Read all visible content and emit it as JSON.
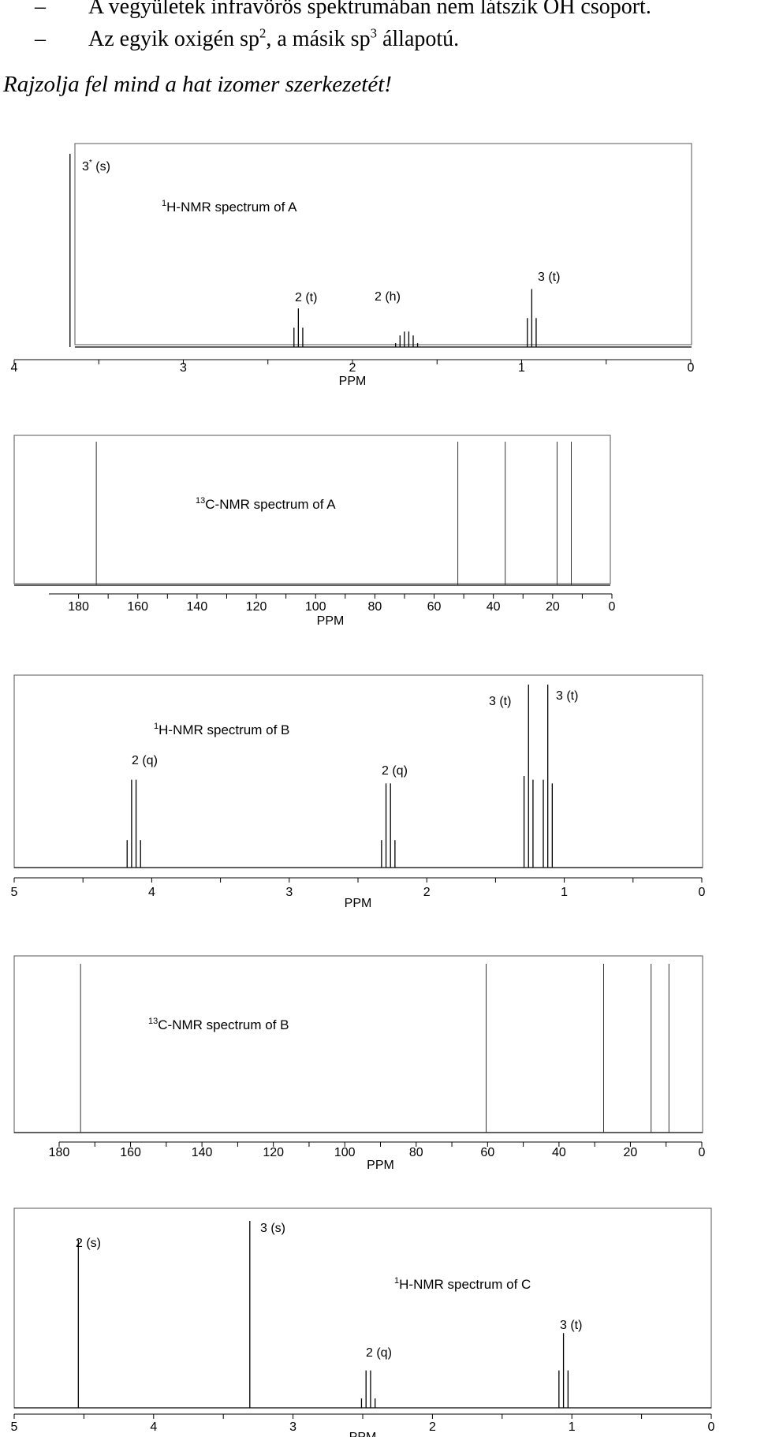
{
  "text_lines": [
    {
      "bullet": "–",
      "text": "A vegyületek infravörös spektrumában nem látszik OH csoport."
    },
    {
      "bullet": "–",
      "parts": [
        "Az egyik oxigén sp",
        "2",
        ", a másik sp",
        "3",
        " állapotú."
      ]
    }
  ],
  "instruction": "Rajzolja fel mind a hat izomer szerkezetét!",
  "axis_label": "PPM",
  "chart_data": [
    {
      "type": "line",
      "title_sup": "1",
      "title": "H-NMR spectrum of A",
      "xlim": [
        4,
        0
      ],
      "xticks": [
        "4",
        "3",
        "2",
        "1",
        "0"
      ],
      "xtick_values": [
        4,
        3,
        2,
        1,
        0
      ],
      "peaks": [
        {
          "shift": 3.67,
          "lines": [
            1.0
          ],
          "label": "3",
          "label_sup": "*",
          "label_suffix": " (s)"
        },
        {
          "shift": 2.32,
          "lines": [
            0.1,
            0.2,
            0.1
          ],
          "label": "2 (t)"
        },
        {
          "shift": 1.68,
          "lines": [
            0.02,
            0.06,
            0.08,
            0.08,
            0.06,
            0.02
          ],
          "label": "2 (h)"
        },
        {
          "shift": 0.94,
          "lines": [
            0.15,
            0.3,
            0.15
          ],
          "label": "3 (t)"
        }
      ]
    },
    {
      "type": "line",
      "title_sup": "13",
      "title": "C-NMR spectrum of A",
      "xlim": [
        190,
        0
      ],
      "xticks": [
        "180",
        "160",
        "140",
        "120",
        "100",
        "80",
        "60",
        "40",
        "20",
        "0"
      ],
      "xtick_values": [
        180,
        160,
        140,
        120,
        100,
        80,
        60,
        40,
        20,
        0
      ],
      "peaks": [
        {
          "shift": 174,
          "lines": [
            1.0
          ]
        },
        {
          "shift": 52,
          "lines": [
            1.0
          ]
        },
        {
          "shift": 36,
          "lines": [
            1.0
          ]
        },
        {
          "shift": 18.5,
          "lines": [
            1.0
          ]
        },
        {
          "shift": 13.7,
          "lines": [
            1.0
          ]
        }
      ]
    },
    {
      "type": "line",
      "title_sup": "1",
      "title": "H-NMR spectrum of B",
      "xlim": [
        5,
        0
      ],
      "xticks": [
        "5",
        "4",
        "3",
        "2",
        "1",
        "0"
      ],
      "xtick_values": [
        5,
        4,
        3,
        2,
        1,
        0
      ],
      "peaks": [
        {
          "shift": 4.13,
          "lines": [
            0.15,
            0.48,
            0.48,
            0.15
          ],
          "label": "2 (q)"
        },
        {
          "shift": 2.28,
          "lines": [
            0.15,
            0.46,
            0.46,
            0.15
          ],
          "label": "2 (q)"
        },
        {
          "shift": 1.26,
          "lines": [
            0.5,
            1.0,
            0.48
          ],
          "label": "3 (t)"
        },
        {
          "shift": 1.12,
          "lines": [
            0.48,
            1.0,
            0.46
          ],
          "label": "3 (t)"
        }
      ]
    },
    {
      "type": "line",
      "title_sup": "13",
      "title": "C-NMR spectrum of B",
      "xlim": [
        180,
        0
      ],
      "xticks": [
        "180",
        "160",
        "140",
        "120",
        "100",
        "80",
        "60",
        "40",
        "20",
        "0"
      ],
      "xtick_values": [
        180,
        160,
        140,
        120,
        100,
        80,
        60,
        40,
        20,
        0
      ],
      "peaks": [
        {
          "shift": 174,
          "lines": [
            1.0
          ]
        },
        {
          "shift": 60.4,
          "lines": [
            1.0
          ]
        },
        {
          "shift": 27.5,
          "lines": [
            1.0
          ]
        },
        {
          "shift": 14.2,
          "lines": [
            1.0
          ]
        },
        {
          "shift": 9.2,
          "lines": [
            1.0
          ]
        }
      ]
    },
    {
      "type": "line",
      "title_sup": "1",
      "title": "H-NMR spectrum of C",
      "xlim": [
        5,
        0
      ],
      "xticks": [
        "5",
        "4",
        "3",
        "2",
        "1",
        "0"
      ],
      "xtick_values": [
        5,
        4,
        3,
        2,
        1,
        0
      ],
      "peaks": [
        {
          "shift": 4.54,
          "lines": [
            0.9
          ],
          "label": "2 (s)"
        },
        {
          "shift": 3.31,
          "lines": [
            1.0
          ],
          "label": "3 (s)"
        },
        {
          "shift": 2.46,
          "lines": [
            0.05,
            0.2,
            0.2,
            0.05
          ],
          "label": "2 (q)"
        },
        {
          "shift": 1.06,
          "lines": [
            0.2,
            0.4,
            0.2
          ],
          "label": "3 (t)"
        }
      ]
    }
  ]
}
